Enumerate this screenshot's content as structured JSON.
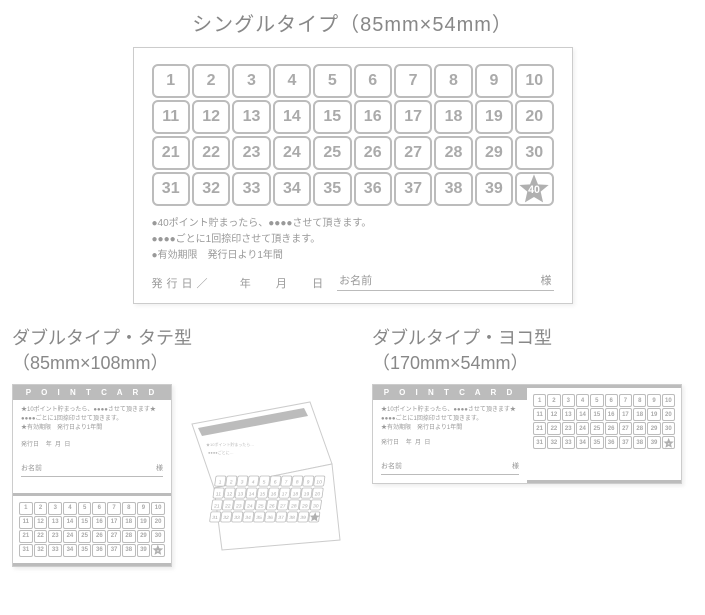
{
  "titles": {
    "single": "シングルタイプ（85mm×54mm）",
    "double_v": "ダブルタイプ・タテ型",
    "double_v_dim": "（85mm×108mm）",
    "double_h": "ダブルタイプ・ヨコ型",
    "double_h_dim": "（170mm×54mm）"
  },
  "point_card_header": "P O I N T   C A R D",
  "numbers": [
    "1",
    "2",
    "3",
    "4",
    "5",
    "6",
    "7",
    "8",
    "9",
    "10",
    "11",
    "12",
    "13",
    "14",
    "15",
    "16",
    "17",
    "18",
    "19",
    "20",
    "21",
    "22",
    "23",
    "24",
    "25",
    "26",
    "27",
    "28",
    "29",
    "30",
    "31",
    "32",
    "33",
    "34",
    "35",
    "36",
    "37",
    "38",
    "39",
    "40"
  ],
  "star_index": 39,
  "notes": {
    "line1": "●40ポイント貯まったら、●●●●させて頂きます。",
    "line2": "●●●●ごとに1回捺印させて頂きます。",
    "line3": "●有効期限　発行日より1年間"
  },
  "mini_note": "★10ポイント貯まったら、●●●●させて頂きます★",
  "mini_sub1": "●●●●ごとに1回捺印させて頂きます。",
  "mini_sub2": "★有効期限　発行日より1年間",
  "footer": {
    "issue_label": "発行日",
    "slash": "／",
    "year": "年",
    "month": "月",
    "day": "日",
    "name_label": "お名前",
    "sama": "様"
  },
  "colors": {
    "text": "#888888",
    "muted": "#aaaaaa",
    "border": "#bcbcbc",
    "line": "#bbbbbb",
    "star": "#b0b0b0",
    "bg": "#ffffff"
  }
}
